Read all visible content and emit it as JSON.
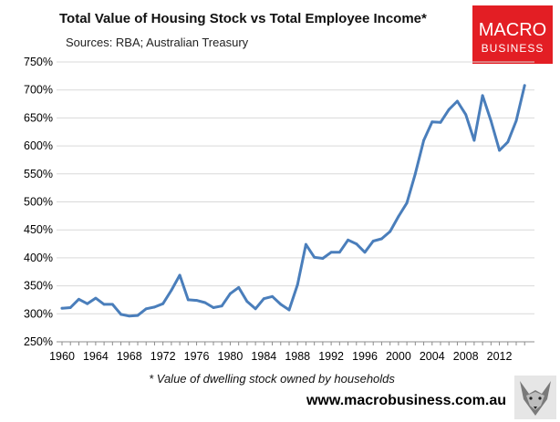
{
  "chart_data": {
    "type": "line",
    "title": "Total Value of Housing Stock vs Total Employee Income*",
    "subtitle": "Sources: RBA; Australian Treasury",
    "footnote": "* Value of dwelling stock owned by households",
    "website": "www.macrobusiness.com.au",
    "xlabel": "",
    "ylabel": "",
    "ylim": [
      250,
      750
    ],
    "xlim": [
      1960,
      2014
    ],
    "y_ticks": [
      "250%",
      "300%",
      "350%",
      "400%",
      "450%",
      "500%",
      "550%",
      "600%",
      "650%",
      "700%",
      "750%"
    ],
    "y_tick_values": [
      250,
      300,
      350,
      400,
      450,
      500,
      550,
      600,
      650,
      700,
      750
    ],
    "x_ticks": [
      "1960",
      "1964",
      "1968",
      "1972",
      "1976",
      "1980",
      "1984",
      "1988",
      "1992",
      "1996",
      "2000",
      "2004",
      "2008",
      "2012"
    ],
    "x_tick_values": [
      1960,
      1964,
      1968,
      1972,
      1976,
      1980,
      1984,
      1988,
      1992,
      1996,
      2000,
      2004,
      2008,
      2012
    ],
    "grid": "horizontal",
    "line_color": "#4a7ebb",
    "series": [
      {
        "x": [
          1960,
          1961,
          1962,
          1963,
          1964,
          1965,
          1966,
          1967,
          1968,
          1969,
          1970,
          1971,
          1972,
          1973,
          1974,
          1975,
          1976,
          1977,
          1978,
          1979,
          1980,
          1981,
          1982,
          1983,
          1984,
          1985,
          1986,
          1987,
          1988,
          1989,
          1990,
          1991,
          1992,
          1993,
          1994,
          1995,
          1996,
          1997,
          1998,
          1999,
          2000,
          2001,
          2002,
          2003,
          2004,
          2005,
          2006,
          2007,
          2008,
          2009,
          2010,
          2011,
          2012,
          2013,
          2014,
          2015
        ],
        "values": [
          310,
          311,
          326,
          318,
          328,
          317,
          317,
          299,
          296,
          297,
          309,
          312,
          318,
          342,
          369,
          325,
          324,
          320,
          311,
          314,
          336,
          347,
          322,
          309,
          327,
          331,
          317,
          307,
          352,
          424,
          401,
          399,
          410,
          410,
          432,
          425,
          410,
          430,
          434,
          447,
          474,
          498,
          550,
          610,
          643,
          642,
          665,
          680,
          656,
          610,
          690,
          645,
          592,
          607,
          645,
          708
        ]
      }
    ]
  },
  "logo": {
    "line1": "MACRO",
    "line2": "BUSINESS",
    "bg_color": "#e31e24"
  },
  "watermark_icon": "wolf-icon"
}
